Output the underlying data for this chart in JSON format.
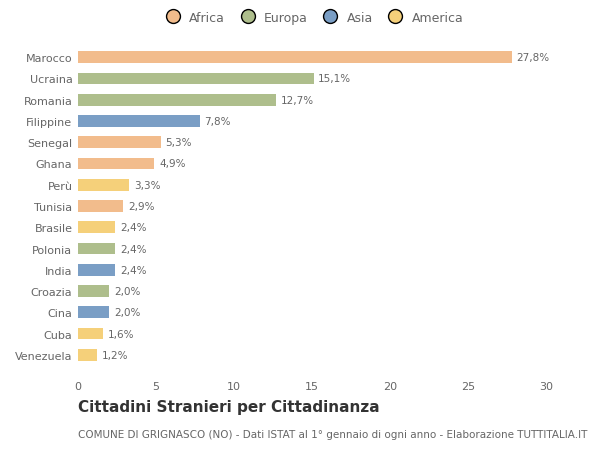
{
  "categories": [
    "Marocco",
    "Ucraina",
    "Romania",
    "Filippine",
    "Senegal",
    "Ghana",
    "Perù",
    "Tunisia",
    "Brasile",
    "Polonia",
    "India",
    "Croazia",
    "Cina",
    "Cuba",
    "Venezuela"
  ],
  "values": [
    27.8,
    15.1,
    12.7,
    7.8,
    5.3,
    4.9,
    3.3,
    2.9,
    2.4,
    2.4,
    2.4,
    2.0,
    2.0,
    1.6,
    1.2
  ],
  "labels": [
    "27,8%",
    "15,1%",
    "12,7%",
    "7,8%",
    "5,3%",
    "4,9%",
    "3,3%",
    "2,9%",
    "2,4%",
    "2,4%",
    "2,4%",
    "2,0%",
    "2,0%",
    "1,6%",
    "1,2%"
  ],
  "colors": [
    "#F2BC8C",
    "#AEBE8C",
    "#AEBE8C",
    "#7A9EC5",
    "#F2BC8C",
    "#F2BC8C",
    "#F5D07A",
    "#F2BC8C",
    "#F5D07A",
    "#AEBE8C",
    "#7A9EC5",
    "#AEBE8C",
    "#7A9EC5",
    "#F5D07A",
    "#F5D07A"
  ],
  "legend_labels": [
    "Africa",
    "Europa",
    "Asia",
    "America"
  ],
  "legend_colors": [
    "#F2BC8C",
    "#AEBE8C",
    "#7A9EC5",
    "#F5D07A"
  ],
  "xlim": [
    0,
    30
  ],
  "xticks": [
    0,
    5,
    10,
    15,
    20,
    25,
    30
  ],
  "title": "Cittadini Stranieri per Cittadinanza",
  "subtitle": "COMUNE DI GRIGNASCO (NO) - Dati ISTAT al 1° gennaio di ogni anno - Elaborazione TUTTITALIA.IT",
  "bg_color": "#FFFFFF",
  "bar_height": 0.55,
  "title_fontsize": 11,
  "subtitle_fontsize": 7.5,
  "label_fontsize": 7.5,
  "tick_fontsize": 8,
  "legend_fontsize": 9
}
